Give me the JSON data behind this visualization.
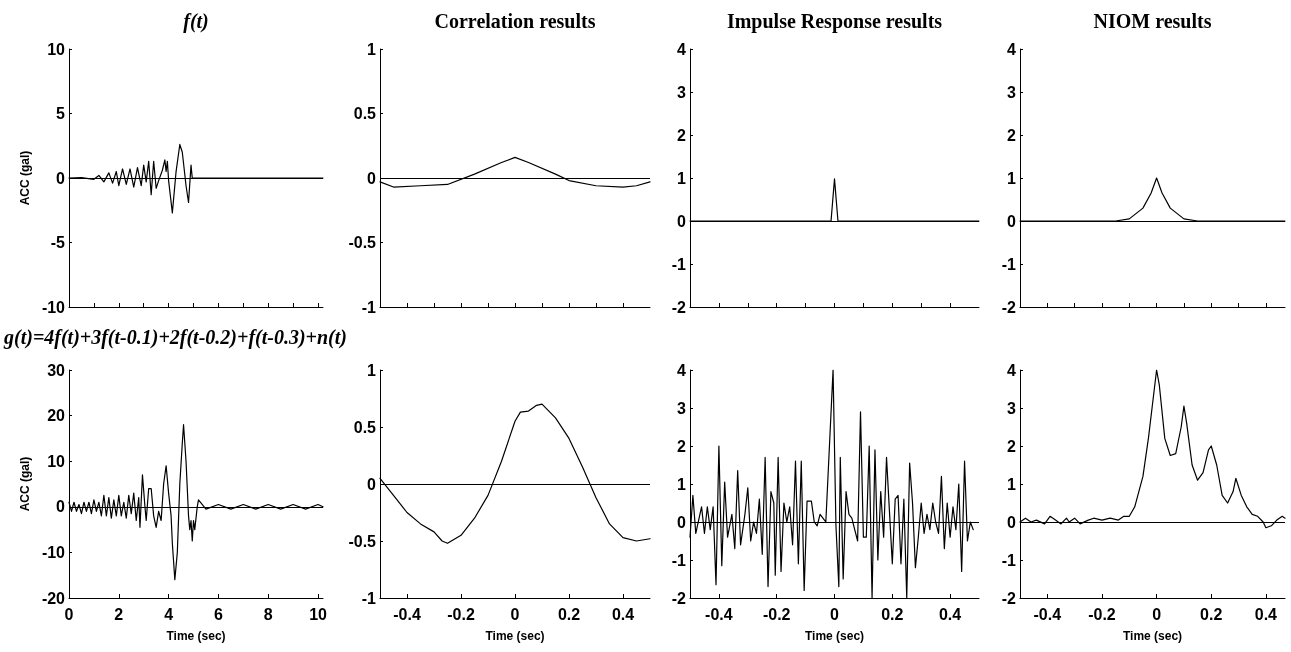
{
  "chart_data": [
    {
      "type": "line",
      "title": "f(t)",
      "ylabel": "ACC (gal)",
      "tick_labels": "y",
      "color": "#000000",
      "xlim": [
        0,
        10.2
      ],
      "xticks": [
        0,
        1,
        2,
        3,
        4,
        5,
        6,
        7,
        8,
        9,
        10
      ],
      "ylim": [
        -10,
        10
      ],
      "yticks": [
        -10,
        -5,
        0,
        5,
        10
      ],
      "ref_lines": [
        {
          "axis": "y",
          "value": 0
        }
      ],
      "x": [
        0,
        0.5,
        1,
        1.2,
        1.4,
        1.6,
        1.75,
        1.9,
        2,
        2.15,
        2.3,
        2.45,
        2.6,
        2.75,
        2.9,
        3,
        3.1,
        3.2,
        3.3,
        3.4,
        3.5,
        3.6,
        3.75,
        3.85,
        3.9,
        3.95,
        4,
        4.15,
        4.3,
        4.45,
        4.55,
        4.7,
        4.8,
        4.9,
        4.95,
        10.2
      ],
      "values": [
        0,
        0.03,
        -0.1,
        0.2,
        -0.3,
        0.4,
        -0.4,
        0.5,
        -0.6,
        0.7,
        -0.5,
        0.7,
        -0.7,
        0.8,
        -0.6,
        1,
        -0.3,
        1.3,
        -1.3,
        1.3,
        -0.8,
        -0.2,
        0.6,
        1.4,
        0.5,
        1.3,
        -0.2,
        -2.7,
        0.5,
        2.6,
        2,
        -0.6,
        -1.9,
        1,
        0,
        0
      ]
    },
    {
      "type": "line",
      "title": "Correlation results",
      "tick_labels": "y",
      "color": "#000000",
      "xlim": [
        -0.5,
        0.5
      ],
      "xticks": [
        -0.4,
        -0.3,
        -0.2,
        -0.1,
        0,
        0.1,
        0.2,
        0.3,
        0.4
      ],
      "ylim": [
        -1,
        1
      ],
      "yticks": [
        -1,
        -0.5,
        0,
        0.5,
        1
      ],
      "ref_lines": [
        {
          "axis": "y",
          "value": 0
        }
      ],
      "x": [
        -0.5,
        -0.45,
        -0.35,
        -0.25,
        -0.15,
        -0.05,
        0,
        0.05,
        0.15,
        0.2,
        0.3,
        0.4,
        0.45,
        0.5
      ],
      "values": [
        -0.03,
        -0.07,
        -0.06,
        -0.05,
        0.03,
        0.12,
        0.16,
        0.12,
        0.03,
        -0.02,
        -0.06,
        -0.07,
        -0.06,
        -0.03
      ]
    },
    {
      "type": "line",
      "title": "Impulse Response results",
      "tick_labels": "y",
      "color": "#000000",
      "xlim": [
        -0.5,
        0.5
      ],
      "xticks": [
        -0.4,
        -0.3,
        -0.2,
        -0.1,
        0,
        0.1,
        0.2,
        0.3,
        0.4
      ],
      "ylim": [
        -2,
        4
      ],
      "yticks": [
        -2,
        -1,
        0,
        1,
        2,
        3,
        4
      ],
      "ref_lines": [
        {
          "axis": "y",
          "value": 0
        }
      ],
      "x": [
        -0.5,
        -0.012,
        0,
        0.012,
        0.5
      ],
      "values": [
        0,
        0,
        0.98,
        0,
        0
      ]
    },
    {
      "type": "line",
      "title": "NIOM results",
      "tick_labels": "y",
      "color": "#000000",
      "xlim": [
        -0.5,
        0.47
      ],
      "xticks": [
        -0.4,
        -0.3,
        -0.2,
        -0.1,
        0,
        0.1,
        0.2,
        0.3,
        0.4
      ],
      "ylim": [
        -2,
        4
      ],
      "yticks": [
        -2,
        -1,
        0,
        1,
        2,
        3,
        4
      ],
      "ref_lines": [
        {
          "axis": "y",
          "value": 0
        }
      ],
      "x": [
        -0.5,
        -0.15,
        -0.1,
        -0.05,
        -0.02,
        0,
        0.02,
        0.05,
        0.1,
        0.15,
        0.47
      ],
      "values": [
        0,
        0,
        0.05,
        0.3,
        0.65,
        1,
        0.65,
        0.3,
        0.05,
        0,
        0
      ]
    },
    {
      "type": "line",
      "title": "g(t)=4f(t)+3f(t-0.1)+2f(t-0.2)+f(t-0.3)+n(t)",
      "ylabel": "ACC (gal)",
      "xlabel": "Time (sec)",
      "color": "#000000",
      "xlim": [
        0,
        10.2
      ],
      "xticks": [
        0,
        2,
        4,
        6,
        8,
        10
      ],
      "ylim": [
        -20,
        30
      ],
      "yticks": [
        -20,
        -10,
        0,
        10,
        20,
        30
      ],
      "ref_lines": [
        {
          "axis": "y",
          "value": 0
        }
      ],
      "x": [
        0,
        0.1,
        0.2,
        0.3,
        0.4,
        0.5,
        0.6,
        0.7,
        0.8,
        0.9,
        1,
        1.1,
        1.2,
        1.3,
        1.4,
        1.5,
        1.6,
        1.7,
        1.8,
        1.9,
        2,
        2.1,
        2.2,
        2.3,
        2.4,
        2.5,
        2.6,
        2.7,
        2.8,
        2.85,
        2.95,
        3.05,
        3.1,
        3.2,
        3.3,
        3.4,
        3.5,
        3.6,
        3.7,
        3.8,
        3.9,
        4,
        4.1,
        4.15,
        4.25,
        4.35,
        4.45,
        4.55,
        4.6,
        4.7,
        4.8,
        4.85,
        4.9,
        4.95,
        5,
        5.05,
        5.15,
        5.2,
        5.5,
        6,
        6.5,
        7,
        7.5,
        8,
        8.5,
        9,
        9.5,
        10,
        10.2
      ],
      "values": [
        1,
        -1,
        1,
        -1,
        0.5,
        -1.5,
        1,
        -1,
        1,
        -1.5,
        1.5,
        -1,
        1,
        -2,
        2.5,
        -2,
        2,
        -2.5,
        1.5,
        -2,
        2.5,
        -2,
        1,
        -2.5,
        2.5,
        -1.5,
        3,
        -3,
        2,
        -4.5,
        7,
        0,
        -3,
        4,
        4,
        -2,
        -4.5,
        -1,
        -3,
        5,
        9,
        3,
        -2,
        -8,
        -16,
        -10,
        5,
        14,
        18,
        10,
        -2,
        -5,
        -3,
        -7.5,
        -3,
        -5,
        0,
        1.5,
        -0.5,
        0.5,
        -0.5,
        0.5,
        -0.5,
        0.5,
        -0.5,
        0.5,
        -0.5,
        0.5,
        0
      ]
    },
    {
      "type": "line",
      "xlabel": "Time (sec)",
      "color": "#000000",
      "xlim": [
        -0.5,
        0.5
      ],
      "xticks": [
        -0.4,
        -0.2,
        0,
        0.2,
        0.4
      ],
      "ylim": [
        -1,
        1
      ],
      "yticks": [
        -1,
        -0.5,
        0,
        0.5,
        1
      ],
      "ref_lines": [
        {
          "axis": "y",
          "value": 0
        }
      ],
      "x": [
        -0.5,
        -0.45,
        -0.4,
        -0.35,
        -0.3,
        -0.27,
        -0.25,
        -0.2,
        -0.15,
        -0.1,
        -0.05,
        0,
        0.02,
        0.05,
        0.08,
        0.1,
        0.15,
        0.2,
        0.25,
        0.3,
        0.35,
        0.4,
        0.45,
        0.5
      ],
      "values": [
        0.05,
        -0.1,
        -0.25,
        -0.35,
        -0.42,
        -0.5,
        -0.52,
        -0.45,
        -0.3,
        -0.1,
        0.2,
        0.55,
        0.63,
        0.64,
        0.69,
        0.7,
        0.58,
        0.4,
        0.15,
        -0.12,
        -0.35,
        -0.47,
        -0.5,
        -0.48
      ]
    },
    {
      "type": "line",
      "xlabel": "Time (sec)",
      "color": "#000000",
      "xlim": [
        -0.5,
        0.5
      ],
      "xticks": [
        -0.4,
        -0.2,
        0,
        0.2,
        0.4
      ],
      "ylim": [
        -2,
        4
      ],
      "yticks": [
        -2,
        -1,
        0,
        1,
        2,
        3,
        4
      ],
      "ref_lines": [
        {
          "axis": "y",
          "value": 0
        }
      ],
      "x": [
        -0.5,
        -0.49,
        -0.48,
        -0.46,
        -0.45,
        -0.44,
        -0.43,
        -0.42,
        -0.41,
        -0.4,
        -0.39,
        -0.38,
        -0.37,
        -0.355,
        -0.345,
        -0.335,
        -0.325,
        -0.31,
        -0.3,
        -0.29,
        -0.28,
        -0.27,
        -0.26,
        -0.25,
        -0.24,
        -0.23,
        -0.22,
        -0.21,
        -0.205,
        -0.195,
        -0.185,
        -0.175,
        -0.165,
        -0.155,
        -0.145,
        -0.135,
        -0.125,
        -0.115,
        -0.105,
        -0.095,
        -0.08,
        -0.07,
        -0.06,
        -0.05,
        -0.04,
        -0.03,
        -0.005,
        0.005,
        0.015,
        0.02,
        0.03,
        0.04,
        0.05,
        0.06,
        0.07,
        0.08,
        0.09,
        0.1,
        0.11,
        0.12,
        0.13,
        0.14,
        0.15,
        0.16,
        0.17,
        0.18,
        0.19,
        0.2,
        0.21,
        0.22,
        0.23,
        0.24,
        0.25,
        0.26,
        0.27,
        0.28,
        0.29,
        0.3,
        0.31,
        0.32,
        0.33,
        0.34,
        0.35,
        0.36,
        0.37,
        0.38,
        0.39,
        0.4,
        0.41,
        0.42,
        0.43,
        0.44,
        0.45,
        0.46,
        0.47,
        0.48
      ],
      "values": [
        -0.4,
        0.7,
        -0.3,
        0.4,
        -0.3,
        0.4,
        -0.2,
        0.4,
        -1.65,
        2,
        -1.15,
        1.05,
        -0.4,
        0.2,
        -0.7,
        1.35,
        -0.6,
        0.2,
        0.9,
        -0.5,
        0,
        -0.3,
        0.6,
        -0.85,
        1.7,
        -1.7,
        0.8,
        0.5,
        -1.4,
        1.7,
        -1.3,
        0.5,
        0,
        0.4,
        -0.6,
        1.6,
        -1.1,
        1.6,
        -1.8,
        0.55,
        0.55,
        0,
        -0.1,
        0.2,
        0.1,
        0,
        4,
        -0.1,
        -1.7,
        1.7,
        -1.5,
        0.8,
        0.2,
        0.1,
        -0.2,
        -0.5,
        2.9,
        -0.4,
        -0.4,
        2,
        -2,
        1.9,
        -1,
        0.8,
        -0.4,
        1.7,
        0.3,
        -1.1,
        0.6,
        0.7,
        -1.1,
        0.6,
        -2,
        1.55,
        0.5,
        -1.2,
        -0.4,
        0.5,
        -0.3,
        0.2,
        -0.2,
        0.5,
        0,
        -0.3,
        1.2,
        -0.7,
        0.5,
        -0.4,
        0.4,
        -0.2,
        1,
        -1.3,
        1.6,
        -0.5,
        0,
        -0.2
      ]
    },
    {
      "type": "line",
      "xlabel": "Time (sec)",
      "color": "#000000",
      "xlim": [
        -0.5,
        0.47
      ],
      "xticks": [
        -0.4,
        -0.2,
        0,
        0.2,
        0.4
      ],
      "ylim": [
        -2,
        4
      ],
      "yticks": [
        -2,
        -1,
        0,
        1,
        2,
        3,
        4
      ],
      "ref_lines": [
        {
          "axis": "y",
          "value": 0
        }
      ],
      "x": [
        -0.5,
        -0.48,
        -0.46,
        -0.44,
        -0.41,
        -0.39,
        -0.37,
        -0.35,
        -0.33,
        -0.32,
        -0.3,
        -0.28,
        -0.25,
        -0.23,
        -0.2,
        -0.17,
        -0.14,
        -0.12,
        -0.1,
        -0.08,
        -0.05,
        -0.03,
        -0.01,
        0,
        0.01,
        0.03,
        0.05,
        0.07,
        0.09,
        0.1,
        0.11,
        0.13,
        0.15,
        0.17,
        0.19,
        0.2,
        0.22,
        0.24,
        0.26,
        0.28,
        0.29,
        0.31,
        0.33,
        0.35,
        0.37,
        0.39,
        0.4,
        0.42,
        0.44,
        0.46,
        0.47
      ],
      "values": [
        0,
        0.1,
        0,
        0.05,
        -0.05,
        0.15,
        0.05,
        -0.05,
        0.1,
        0,
        0.1,
        -0.05,
        0.05,
        0.1,
        0.05,
        0.1,
        0.05,
        0.15,
        0.15,
        0.4,
        1.2,
        2.2,
        3.4,
        4,
        3.6,
        2.2,
        1.75,
        1.8,
        2.5,
        3.05,
        2.6,
        1.5,
        1.1,
        1.3,
        1.9,
        2,
        1.5,
        0.7,
        0.5,
        0.8,
        1.15,
        0.7,
        0.4,
        0.2,
        0.15,
        0,
        -0.15,
        -0.1,
        0.05,
        0.15,
        0.1
      ]
    }
  ]
}
